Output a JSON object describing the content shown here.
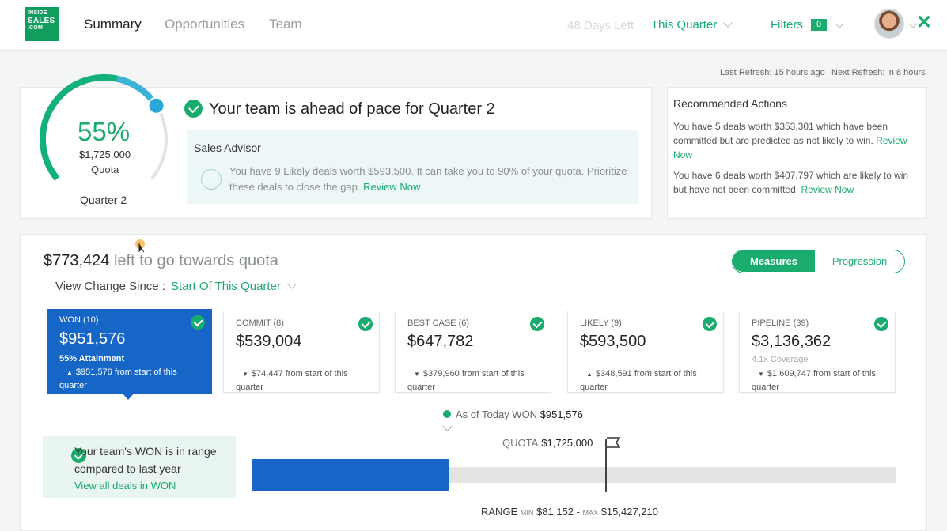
{
  "logo": {
    "line1": "INSIDE",
    "line2": "SALES",
    "line3": ".COM"
  },
  "nav": {
    "tabs": [
      "Summary",
      "Opportunities",
      "Team"
    ],
    "active": "Summary"
  },
  "header": {
    "days_left": "48 Days Left",
    "quarter_select": "This Quarter",
    "filters_label": "Filters",
    "filters_count": "0"
  },
  "refresh": {
    "last": "Last Refresh: 15 hours ago",
    "next": "Next Refresh: in 8 hours"
  },
  "gauge": {
    "percent": "55%",
    "percent_value": 55,
    "amount": "$1,725,000",
    "quota_label": "Quota",
    "quarter": "Quarter 2"
  },
  "pace": {
    "title": "Your team is ahead of pace for Quarter 2"
  },
  "advisor": {
    "title": "Sales Advisor",
    "text": "You have 9 Likely deals worth $593,500. It can take you to 90% of your quota. Prioritize these deals to close the gap.",
    "link": "Review Now"
  },
  "recommended": {
    "title": "Recommended Actions",
    "items": [
      {
        "text": "You have 5 deals worth $353,301 which have been committed but are predicted as not likely to win.",
        "link": "Review Now"
      },
      {
        "text": "You have 6 deals worth $407,797 which are likely to win but have not been committed.",
        "link": "Review Now"
      }
    ]
  },
  "main": {
    "left_amount": "$773,424",
    "left_text": "left to go towards quota",
    "view_change_label": "View Change Since :",
    "view_change_value": "Start Of This Quarter",
    "toggle": {
      "measures": "Measures",
      "progression": "Progression"
    }
  },
  "metrics": [
    {
      "label": "WON (10)",
      "value": "$951,576",
      "sub": "55% Attainment",
      "dir": "▲",
      "change": "$951,576 from start of this quarter"
    },
    {
      "label": "COMMIT (8)",
      "value": "$539,004",
      "sub": "",
      "dir": "▼",
      "change": "$74,447 from start of this quarter"
    },
    {
      "label": "BEST CASE (6)",
      "value": "$647,782",
      "sub": "",
      "dir": "▼",
      "change": "$379,960 from start of this quarter"
    },
    {
      "label": "LIKELY (9)",
      "value": "$593,500",
      "sub": "",
      "dir": "▲",
      "change": "$348,591 from start of this quarter"
    },
    {
      "label": "PIPELINE (39)",
      "value": "$3,136,362",
      "sub": "4.1x Coverage",
      "dir": "▼",
      "change": "$1,609,747 from start of this quarter"
    }
  ],
  "progress": {
    "asof_label": "As of Today WON",
    "asof_value": "$951,576",
    "quota_label": "QUOTA",
    "quota_value": "$1,725,000",
    "range_label": "RANGE",
    "min_label": "MIN",
    "min_value": "$81,152",
    "max_label": "MAX",
    "max_value": "$15,427,210",
    "won_fraction": 0.305
  },
  "range_note": {
    "text": "Your team's WON is in range compared to last year",
    "link": "View all deals in WON"
  },
  "colors": {
    "accent": "#1aab6f",
    "won_blue": "#1666c8"
  }
}
